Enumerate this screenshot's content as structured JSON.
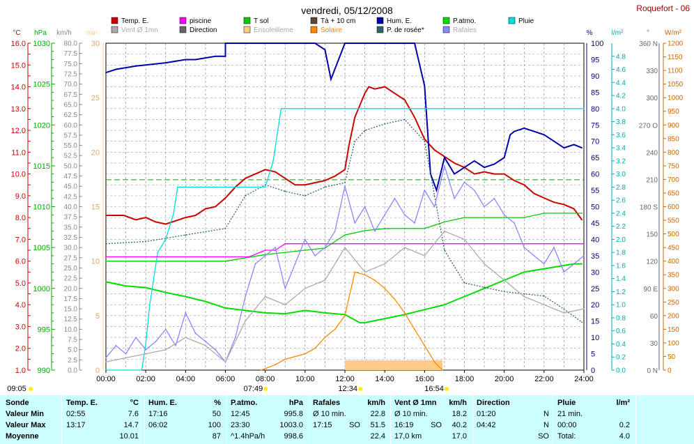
{
  "title": "vendredi, 05/12/2008",
  "station": "Roquefort - 06",
  "colors": {
    "temp": "#cc0000",
    "piscine": "#ff00ff",
    "tsol": "#00cc00",
    "tcm": "#664433",
    "hum": "#0000aa",
    "patm": "#00dd00",
    "pluie": "#00dddd",
    "vent": "#aaaaaa",
    "direction": "#666666",
    "enso": "#ffcc88",
    "solaire": "#ff8800",
    "rosee": "#336666",
    "rafales": "#8888ff"
  },
  "legend": [
    {
      "label": "Temp. E.",
      "key": "temp"
    },
    {
      "label": "piscine",
      "key": "piscine"
    },
    {
      "label": "T sol",
      "key": "tsol"
    },
    {
      "label": "Tà + 10 cm",
      "key": "tcm"
    },
    {
      "label": "Hum. E.",
      "key": "hum"
    },
    {
      "label": "P.atmo.",
      "key": "patm"
    },
    {
      "label": "Pluie",
      "key": "pluie"
    },
    {
      "label": "Vent Ø 1mn",
      "key": "vent"
    },
    {
      "label": "Direction",
      "key": "direction"
    },
    {
      "label": "Ensoleilleme",
      "key": "enso"
    },
    {
      "label": "Solaire",
      "key": "solaire"
    },
    {
      "label": "P. de rosée*",
      "key": "rosee"
    },
    {
      "label": "Rafales",
      "key": "rafales"
    }
  ],
  "axes": {
    "temp": {
      "unit": "°C",
      "min": 1,
      "max": 16,
      "step": 0.5,
      "labelEvery": 1
    },
    "hpa": {
      "unit": "hPa",
      "min": 990,
      "max": 1030,
      "step": 5
    },
    "kmh": {
      "unit": "km/h",
      "min": 0,
      "max": 80,
      "step": 2.5
    },
    "minutes": {
      "unit": "min",
      "min": 0,
      "max": 30,
      "step": 5
    },
    "pct": {
      "unit": "%",
      "min": 0,
      "max": 100,
      "step": 5
    },
    "rain": {
      "unit": "l/m²",
      "min": 0,
      "max": 5,
      "step": 0.2
    },
    "dir": {
      "unit": "°",
      "ticks": [
        "0 N",
        "30",
        "60",
        "90 E",
        "120",
        "150",
        "180 S",
        "210",
        "240",
        "270 O",
        "300",
        "330",
        "360 N"
      ]
    },
    "wm2": {
      "unit": "W/m²",
      "min": 0,
      "max": 1200,
      "step": 50
    }
  },
  "x_ticks": [
    "00:00",
    "02:00",
    "04:00",
    "06:00",
    "08:00",
    "10:00",
    "12:00",
    "14:00",
    "16:00",
    "18:00",
    "20:00",
    "22:00",
    "24:00"
  ],
  "markers": {
    "sunrise": "07:49",
    "noon": "12:34",
    "sunset": "16:54",
    "left": "09:05"
  },
  "chart_data": {
    "type": "line",
    "x_unit": "hour",
    "title": "vendredi, 05/12/2008",
    "series": [
      {
        "name": "Temp. E.",
        "key": "temp",
        "axis": "temp",
        "x": [
          0,
          0.9,
          1.5,
          2,
          2.5,
          3,
          4,
          4.5,
          5,
          5.5,
          6,
          6.5,
          7,
          7.5,
          8,
          8.5,
          9,
          9.5,
          10,
          10.5,
          11,
          11.5,
          12,
          12.2,
          12.5,
          13,
          13.2,
          13.5,
          14,
          14.5,
          15,
          15.5,
          16,
          16.5,
          17,
          17.5,
          18,
          18.5,
          19,
          19.5,
          20,
          20.5,
          21,
          21.5,
          22,
          22.5,
          23,
          23.5,
          23.9
        ],
        "y": [
          8.1,
          8.1,
          7.9,
          8.0,
          7.8,
          7.7,
          8.0,
          8.1,
          8.4,
          8.5,
          8.9,
          9.4,
          9.8,
          10.0,
          10.2,
          10.1,
          9.8,
          9.5,
          9.5,
          9.6,
          9.7,
          9.9,
          10.2,
          11.3,
          12.6,
          13.7,
          14.0,
          13.9,
          14.0,
          13.7,
          13.4,
          12.6,
          11.6,
          11.1,
          10.8,
          10.5,
          10.3,
          10.0,
          10.1,
          10.0,
          10.0,
          9.7,
          9.5,
          9.1,
          8.9,
          8.7,
          8.6,
          8.4,
          7.9
        ]
      },
      {
        "name": "Hum. E.",
        "key": "hum",
        "axis": "pct",
        "x": [
          0,
          0.5,
          1.5,
          3,
          4,
          4.5,
          5,
          5.5,
          6,
          6,
          7,
          9.5,
          10.5,
          11,
          11.3,
          12,
          14,
          15.5,
          16,
          16.3,
          16.6,
          17,
          17.5,
          18,
          18.5,
          19,
          19.5,
          20,
          20.3,
          20.5,
          21,
          21.5,
          22,
          22.5,
          23,
          23.5,
          23.9
        ],
        "y": [
          91,
          92,
          93,
          94,
          95,
          95,
          95.5,
          96,
          96,
          100,
          100,
          100,
          100,
          98,
          89,
          100,
          100,
          100,
          87,
          60,
          55,
          65,
          60,
          62,
          64,
          62,
          63,
          65,
          72,
          73,
          74,
          73,
          72,
          70,
          68,
          69,
          68
        ]
      },
      {
        "name": "P.atmo.",
        "key": "patm",
        "axis": "hpa",
        "x": [
          0,
          1,
          2,
          3,
          4,
          5,
          6,
          7,
          8,
          9,
          10,
          11,
          12,
          12.75,
          13,
          14,
          15,
          16,
          17,
          18,
          19,
          20,
          21,
          22,
          23,
          23.5,
          23.9
        ],
        "y": [
          1000.8,
          1000.3,
          1000.1,
          999.5,
          999.0,
          998.4,
          997.6,
          997.3,
          997.0,
          996.9,
          997.3,
          997.0,
          996.8,
          995.8,
          995.8,
          996.3,
          996.8,
          997.4,
          998.0,
          999.0,
          1000.0,
          1001.0,
          1002.0,
          1002.4,
          1002.8,
          1003.0,
          1003.0
        ]
      },
      {
        "name": "T sol",
        "key": "tsol",
        "axis": "temp",
        "x": [
          0,
          6,
          8,
          10,
          11,
          12,
          13,
          14,
          16,
          17,
          18,
          20,
          21,
          22,
          23,
          23.9
        ],
        "y": [
          6.0,
          6.0,
          6.3,
          6.5,
          6.6,
          7.2,
          7.4,
          7.5,
          7.5,
          7.8,
          8.0,
          8.0,
          8.0,
          8.2,
          8.2,
          8.2
        ]
      },
      {
        "name": "P. de rosée*",
        "key": "rosee",
        "axis": "temp",
        "x": [
          0,
          2,
          4,
          6,
          7,
          8,
          9,
          10,
          11,
          12,
          12.5,
          13,
          14,
          15,
          16,
          16.5,
          17,
          18,
          19,
          20,
          21,
          22,
          23,
          23.9
        ],
        "y": [
          6.8,
          6.9,
          7.2,
          7.5,
          9.0,
          9.5,
          9.2,
          9.0,
          9.4,
          9.6,
          11.5,
          12.0,
          12.3,
          12.5,
          11.5,
          9.0,
          6.5,
          5.0,
          4.8,
          4.6,
          4.5,
          4.4,
          3.8,
          3.2
        ]
      },
      {
        "name": "Pluie",
        "key": "pluie",
        "axis": "rain",
        "x": [
          0,
          1.8,
          2.0,
          2.2,
          2.6,
          3,
          3.4,
          3.6,
          5,
          8,
          8.4,
          8.6,
          8.8,
          16,
          17,
          24
        ],
        "y": [
          0,
          0,
          0.4,
          1.0,
          1.8,
          2.0,
          2.4,
          2.8,
          2.8,
          2.8,
          3.2,
          3.6,
          4.0,
          4.0,
          4.0,
          4.0
        ]
      },
      {
        "name": "piscine",
        "key": "piscine",
        "axis": "temp",
        "x": [
          0,
          7.2,
          8,
          8.5,
          9,
          24
        ],
        "y": [
          6.2,
          6.2,
          6.5,
          6.5,
          6.8,
          6.8
        ]
      },
      {
        "name": "Solaire",
        "key": "solaire",
        "axis": "wm2",
        "x": [
          7.8,
          8.5,
          9,
          10,
          10.5,
          11,
          11.5,
          12,
          12.5,
          13,
          13.5,
          14,
          14.5,
          15,
          15.5,
          16,
          16.5,
          16.9
        ],
        "y": [
          0,
          20,
          40,
          60,
          80,
          120,
          150,
          200,
          360,
          350,
          330,
          300,
          260,
          210,
          150,
          90,
          30,
          0
        ]
      },
      {
        "name": "Rafales",
        "key": "rafales",
        "axis": "kmh",
        "x": [
          0,
          0.5,
          1,
          1.5,
          2,
          2.5,
          3,
          3.5,
          4,
          4.5,
          5,
          5.5,
          6,
          6.5,
          7,
          7.5,
          8,
          8.5,
          9,
          9.5,
          10,
          10.5,
          11,
          11.5,
          12,
          12.5,
          13,
          13.5,
          14,
          14.5,
          15,
          15.5,
          16,
          16.5,
          17,
          17.5,
          18,
          18.5,
          19,
          19.5,
          20,
          20.5,
          21,
          21.5,
          22,
          22.5,
          23,
          23.5,
          24
        ],
        "y": [
          3,
          6,
          4,
          8,
          5,
          7,
          10,
          6,
          14,
          9,
          7,
          5,
          2,
          8,
          18,
          26,
          28,
          30,
          20,
          26,
          32,
          28,
          30,
          34,
          45,
          36,
          40,
          34,
          38,
          42,
          38,
          36,
          44,
          40,
          50,
          42,
          46,
          44,
          40,
          42,
          38,
          36,
          30,
          28,
          26,
          30,
          24,
          26,
          28
        ]
      },
      {
        "name": "Vent Ø 1mn",
        "key": "vent",
        "axis": "kmh",
        "x": [
          0,
          1,
          2,
          3,
          4,
          5,
          6,
          7,
          8,
          9,
          10,
          11,
          12,
          13,
          14,
          15,
          16,
          17,
          18,
          19,
          20,
          21,
          22,
          23,
          24
        ],
        "y": [
          2,
          3,
          4,
          5,
          8,
          6,
          2,
          12,
          18,
          16,
          20,
          22,
          30,
          24,
          26,
          30,
          28,
          34,
          32,
          26,
          22,
          18,
          16,
          14,
          15
        ]
      }
    ],
    "ensoleillement_bar": {
      "start": "12:00",
      "end": "16:54"
    }
  },
  "summary": {
    "rows": [
      "Sonde",
      "Valeur Min",
      "Valeur Max",
      "Moyenne"
    ],
    "cols": [
      {
        "name": "Temp. E.",
        "unit": "°C",
        "min_t": "02:55",
        "min_v": "7.6",
        "max_t": "13:17",
        "max_v": "14.7",
        "mean": "10.01"
      },
      {
        "name": "Hum. E.",
        "unit": "%",
        "min_t": "17:16",
        "min_v": "50",
        "max_t": "06:02",
        "max_v": "100",
        "mean": "87"
      },
      {
        "name": "P.atmo.",
        "unit": "hPa",
        "min_t": "12:45",
        "min_v": "995.8",
        "max_t": "23:30",
        "max_v": "1003.0",
        "mean_l": "^1.4hPa/h",
        "mean": "998.6"
      },
      {
        "name": "Rafales",
        "unit": "km/h",
        "min_t": "Ø 10 min.",
        "min_v": "22.8",
        "max_t": "17:15",
        "max_d": "SO",
        "max_v": "51.5",
        "mean": "22.4"
      },
      {
        "name": "Vent Ø 1mn",
        "unit": "km/h",
        "min_t": "Ø 10 min.",
        "min_v": "18.2",
        "max_t": "16:19",
        "max_d": "SO",
        "max_v": "40.2",
        "mean_l": "17,0 km",
        "mean": "17.0"
      },
      {
        "name": "Direction",
        "unit": "",
        "min_t": "01:20",
        "min_v": "N",
        "max_t": "04:42",
        "max_v": "N",
        "mean": "SO"
      },
      {
        "name": "Pluie",
        "unit": "l/m²",
        "min_t": "21 min.",
        "min_v": "",
        "max_t": "00:00",
        "max_v": "0.2",
        "mean_l": "Total:",
        "mean": "4.0"
      }
    ]
  }
}
